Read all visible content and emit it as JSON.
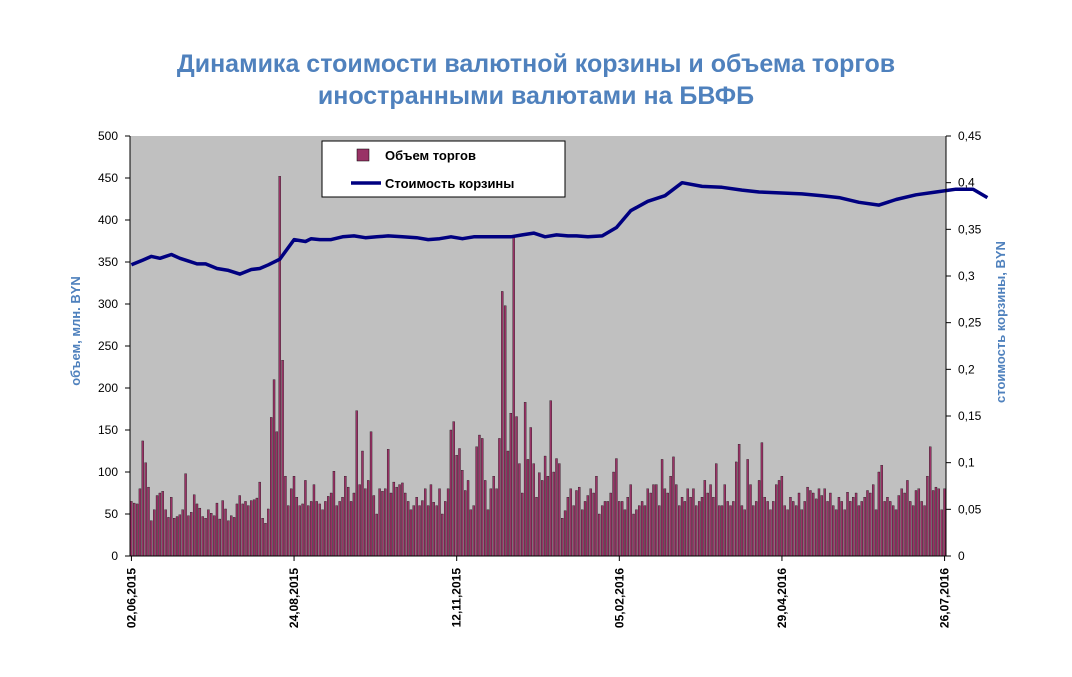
{
  "chart_data": {
    "type": "bar+line",
    "title_lines": [
      "Динамика стоимости валютной корзины и объема торгов",
      "иностранными валютами на БВФБ"
    ],
    "ylabel_left": "объем, млн. BYN",
    "ylabel_right": "стоимость корзины, BYN",
    "ylim_left": [
      0,
      500
    ],
    "ylim_right": [
      0,
      0.45
    ],
    "yticks_left": [
      "0",
      "50",
      "100",
      "150",
      "200",
      "250",
      "300",
      "350",
      "400",
      "450",
      "500"
    ],
    "yticks_right": [
      "0",
      "0,05",
      "0,1",
      "0,15",
      "0,2",
      "0,25",
      "0,3",
      "0,35",
      "0,4",
      "0,45"
    ],
    "xticks": [
      "02,06,2015",
      "24,08,2015",
      "12,11,2015",
      "05,02,2016",
      "29,04,2016",
      "26,07,2016"
    ],
    "legend_placement": "top-left",
    "grid": false,
    "plot_background": "#c0c0c0",
    "series": [
      {
        "name": "Объем торгов",
        "kind": "bar",
        "axis": "left",
        "color": "#993366",
        "values": [
          65,
          63,
          62,
          80,
          137,
          111,
          82,
          42,
          55,
          72,
          75,
          77,
          55,
          46,
          70,
          45,
          47,
          49,
          55,
          98,
          48,
          52,
          73,
          62,
          57,
          47,
          45,
          55,
          51,
          48,
          63,
          44,
          66,
          56,
          42,
          48,
          46,
          62,
          72,
          62,
          65,
          60,
          66,
          67,
          69,
          88,
          45,
          39,
          56,
          165,
          210,
          148,
          452,
          233,
          95,
          60,
          80,
          95,
          70,
          60,
          62,
          90,
          60,
          65,
          85,
          65,
          62,
          55,
          65,
          71,
          75,
          101,
          60,
          65,
          70,
          95,
          82,
          65,
          75,
          173,
          85,
          125,
          80,
          90,
          148,
          72,
          50,
          80,
          77,
          80,
          127,
          75,
          88,
          82,
          85,
          87,
          75,
          65,
          55,
          60,
          70,
          60,
          66,
          80,
          60,
          85,
          64,
          60,
          80,
          50,
          65,
          80,
          150,
          160,
          120,
          128,
          102,
          78,
          90,
          55,
          60,
          130,
          144,
          140,
          90,
          55,
          80,
          95,
          80,
          140,
          315,
          298,
          125,
          170,
          382,
          166,
          110,
          75,
          183,
          115,
          153,
          110,
          70,
          99,
          90,
          119,
          95,
          185,
          100,
          116,
          110,
          45,
          54,
          70,
          80,
          60,
          78,
          82,
          55,
          65,
          72,
          80,
          75,
          95,
          50,
          60,
          65,
          65,
          75,
          100,
          116,
          65,
          65,
          55,
          70,
          85,
          50,
          55,
          60,
          65,
          60,
          80,
          75,
          85,
          85,
          60,
          115,
          80,
          75,
          95,
          118,
          85,
          60,
          70,
          65,
          80,
          70,
          80,
          60,
          65,
          70,
          90,
          75,
          85,
          70,
          110,
          60,
          60,
          85,
          65,
          60,
          65,
          112,
          133,
          60,
          55,
          115,
          85,
          60,
          65,
          90,
          135,
          70,
          65,
          55,
          65,
          85,
          90,
          95,
          60,
          55,
          70,
          65,
          60,
          75,
          55,
          65,
          82,
          78,
          75,
          68,
          80,
          72,
          80,
          65,
          75,
          60,
          55,
          70,
          65,
          55,
          76,
          65,
          70,
          75,
          60,
          65,
          70,
          78,
          75,
          85,
          55,
          100,
          108,
          65,
          70,
          65,
          60,
          55,
          72,
          80,
          75,
          90,
          65,
          60,
          78,
          80,
          65,
          60,
          95,
          130,
          78,
          82,
          80,
          55,
          80
        ]
      },
      {
        "name": "Стоимость корзины",
        "kind": "line",
        "axis": "right",
        "color": "#000080",
        "x": [
          0,
          4,
          7,
          10,
          14,
          17,
          20,
          23,
          26,
          30,
          34,
          38,
          42,
          45,
          48,
          52,
          57,
          61,
          63,
          66,
          70,
          74,
          78,
          82,
          86,
          90,
          95,
          100,
          104,
          108,
          112,
          116,
          120,
          125,
          130,
          133,
          137,
          141,
          145,
          149,
          153,
          156,
          160,
          165,
          170,
          175,
          181,
          187,
          193,
          200,
          207,
          214,
          220,
          227,
          235,
          242,
          248,
          255,
          262,
          268,
          275,
          282,
          289,
          295,
          300
        ],
        "values": [
          0.312,
          0.317,
          0.321,
          0.319,
          0.323,
          0.319,
          0.316,
          0.313,
          0.313,
          0.308,
          0.306,
          0.302,
          0.307,
          0.308,
          0.312,
          0.318,
          0.339,
          0.337,
          0.34,
          0.339,
          0.339,
          0.342,
          0.343,
          0.341,
          0.342,
          0.343,
          0.342,
          0.341,
          0.339,
          0.34,
          0.342,
          0.34,
          0.342,
          0.342,
          0.342,
          0.342,
          0.344,
          0.346,
          0.342,
          0.344,
          0.343,
          0.343,
          0.342,
          0.343,
          0.352,
          0.37,
          0.38,
          0.386,
          0.4,
          0.396,
          0.395,
          0.392,
          0.39,
          0.389,
          0.388,
          0.386,
          0.384,
          0.379,
          0.376,
          0.382,
          0.387,
          0.39,
          0.393,
          0.393,
          0.384
        ]
      }
    ]
  }
}
